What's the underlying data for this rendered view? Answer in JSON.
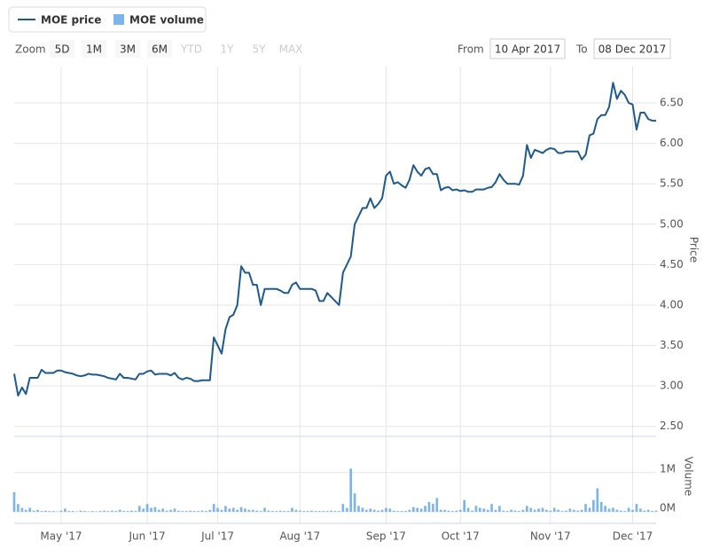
{
  "legend_box": true,
  "zoom": {
    "label": "Zoom",
    "buttons": [
      {
        "label": "5D",
        "enabled": true
      },
      {
        "label": "1M",
        "enabled": true
      },
      {
        "label": "3M",
        "enabled": true
      },
      {
        "label": "6M",
        "enabled": true
      },
      {
        "label": "YTD",
        "enabled": false
      },
      {
        "label": "1Y",
        "enabled": false
      },
      {
        "label": "5Y",
        "enabled": false
      },
      {
        "label": "MAX",
        "enabled": false
      }
    ]
  },
  "range": {
    "from_label": "From",
    "from": "10 Apr 2017",
    "to_label": "To",
    "to": "08 Dec 2017"
  },
  "chart_data": [
    {
      "type": "line",
      "y_axis_label": "Price",
      "grid": true,
      "xlim": [
        0,
        164
      ],
      "ylim": [
        2.42,
        6.95
      ],
      "yticks": [
        {
          "value": 2.5,
          "label": "2.50"
        },
        {
          "value": 3,
          "label": "3.00"
        },
        {
          "value": 3.5,
          "label": "3.50"
        },
        {
          "value": 4,
          "label": "4.00"
        },
        {
          "value": 4.5,
          "label": "4.50"
        },
        {
          "value": 5,
          "label": "5.00"
        },
        {
          "value": 5.5,
          "label": "5.50"
        },
        {
          "value": 6,
          "label": "6.00"
        },
        {
          "value": 6.5,
          "label": "6.50"
        }
      ],
      "series": [
        {
          "name": "MOE price",
          "color": "#1c5a8f",
          "values": [
            3.15,
            2.88,
            2.98,
            2.9,
            3.1,
            3.1,
            3.1,
            3.2,
            3.16,
            3.16,
            3.16,
            3.19,
            3.19,
            3.17,
            3.16,
            3.15,
            3.13,
            3.12,
            3.13,
            3.15,
            3.14,
            3.14,
            3.13,
            3.12,
            3.1,
            3.09,
            3.08,
            3.15,
            3.1,
            3.1,
            3.09,
            3.08,
            3.15,
            3.15,
            3.18,
            3.19,
            3.14,
            3.15,
            3.15,
            3.15,
            3.13,
            3.16,
            3.1,
            3.08,
            3.1,
            3.09,
            3.06,
            3.06,
            3.07,
            3.07,
            3.07,
            3.6,
            3.5,
            3.4,
            3.7,
            3.85,
            3.88,
            4.0,
            4.48,
            4.4,
            4.4,
            4.25,
            4.25,
            4.0,
            4.2,
            4.2,
            4.2,
            4.2,
            4.18,
            4.15,
            4.15,
            4.25,
            4.28,
            4.2,
            4.2,
            4.2,
            4.2,
            4.18,
            4.05,
            4.05,
            4.15,
            4.1,
            4.05,
            4.0,
            4.4,
            4.5,
            4.6,
            5.0,
            5.1,
            5.2,
            5.2,
            5.32,
            5.2,
            5.25,
            5.32,
            5.6,
            5.65,
            5.5,
            5.52,
            5.48,
            5.45,
            5.55,
            5.73,
            5.65,
            5.6,
            5.68,
            5.7,
            5.62,
            5.62,
            5.42,
            5.45,
            5.46,
            5.42,
            5.43,
            5.41,
            5.42,
            5.4,
            5.4,
            5.43,
            5.43,
            5.43,
            5.45,
            5.46,
            5.52,
            5.62,
            5.55,
            5.5,
            5.5,
            5.5,
            5.49,
            5.6,
            5.98,
            5.82,
            5.92,
            5.9,
            5.88,
            5.92,
            5.94,
            5.93,
            5.88,
            5.88,
            5.9,
            5.9,
            5.9,
            5.9,
            5.8,
            5.86,
            6.1,
            6.12,
            6.3,
            6.35,
            6.35,
            6.45,
            6.75,
            6.55,
            6.65,
            6.6,
            6.5,
            6.48,
            6.17,
            6.38,
            6.38,
            6.3,
            6.28,
            6.28
          ]
        }
      ]
    },
    {
      "type": "bar",
      "y_axis_label": "Volume",
      "grid": true,
      "xlim": [
        0,
        164
      ],
      "ylim": [
        0,
        1.81
      ],
      "xticks": [
        {
          "value": 12,
          "label": "May '17"
        },
        {
          "value": 34,
          "label": "Jun '17"
        },
        {
          "value": 52,
          "label": "Jul '17"
        },
        {
          "value": 73,
          "label": "Aug '17"
        },
        {
          "value": 95,
          "label": "Sep '17"
        },
        {
          "value": 114,
          "label": "Oct '17"
        },
        {
          "value": 137,
          "label": "Nov '17"
        },
        {
          "value": 158,
          "label": "Dec '17"
        }
      ],
      "yticks": [
        {
          "value": 0,
          "label": "0M"
        },
        {
          "value": 1,
          "label": "1M"
        }
      ],
      "series": [
        {
          "name": "MOE volume",
          "color": "#7cb5ec",
          "values": [
            0.5,
            0.2,
            0.1,
            0.05,
            0.1,
            0.03,
            0.05,
            0.02,
            0.03,
            0.02,
            0.02,
            0.01,
            0.03,
            0.08,
            0.02,
            0.02,
            0.01,
            0.03,
            0.02,
            0.01,
            0.02,
            0.01,
            0.02,
            0.03,
            0.02,
            0.03,
            0.02,
            0.05,
            0.02,
            0.02,
            0.03,
            0.02,
            0.15,
            0.08,
            0.2,
            0.1,
            0.12,
            0.05,
            0.08,
            0.03,
            0.05,
            0.08,
            0.03,
            0.02,
            0.02,
            0.03,
            0.02,
            0.02,
            0.03,
            0.02,
            0.05,
            0.2,
            0.1,
            0.05,
            0.15,
            0.08,
            0.1,
            0.05,
            0.12,
            0.08,
            0.05,
            0.05,
            0.03,
            0.02,
            0.1,
            0.03,
            0.02,
            0.02,
            0.03,
            0.02,
            0.02,
            0.1,
            0.05,
            0.03,
            0.02,
            0.02,
            0.03,
            0.02,
            0.02,
            0.02,
            0.02,
            0.03,
            0.02,
            0.02,
            0.2,
            0.1,
            1.1,
            0.47,
            0.15,
            0.1,
            0.05,
            0.08,
            0.05,
            0.03,
            0.05,
            0.1,
            0.08,
            0.03,
            0.02,
            0.02,
            0.02,
            0.05,
            0.12,
            0.1,
            0.08,
            0.15,
            0.25,
            0.2,
            0.35,
            0.05,
            0.05,
            0.03,
            0.02,
            0.03,
            0.05,
            0.3,
            0.1,
            0.03,
            0.15,
            0.1,
            0.08,
            0.05,
            0.2,
            0.05,
            0.15,
            0.03,
            0.02,
            0.05,
            0.03,
            0.02,
            0.05,
            0.15,
            0.1,
            0.05,
            0.08,
            0.1,
            0.05,
            0.03,
            0.1,
            0.05,
            0.02,
            0.03,
            0.08,
            0.05,
            0.03,
            0.05,
            0.2,
            0.1,
            0.3,
            0.6,
            0.25,
            0.15,
            0.08,
            0.1,
            0.05,
            0.03,
            0.02,
            0.1,
            0.05,
            0.2,
            0.08,
            0.03,
            0.05,
            0.02,
            0.03
          ]
        }
      ]
    }
  ]
}
